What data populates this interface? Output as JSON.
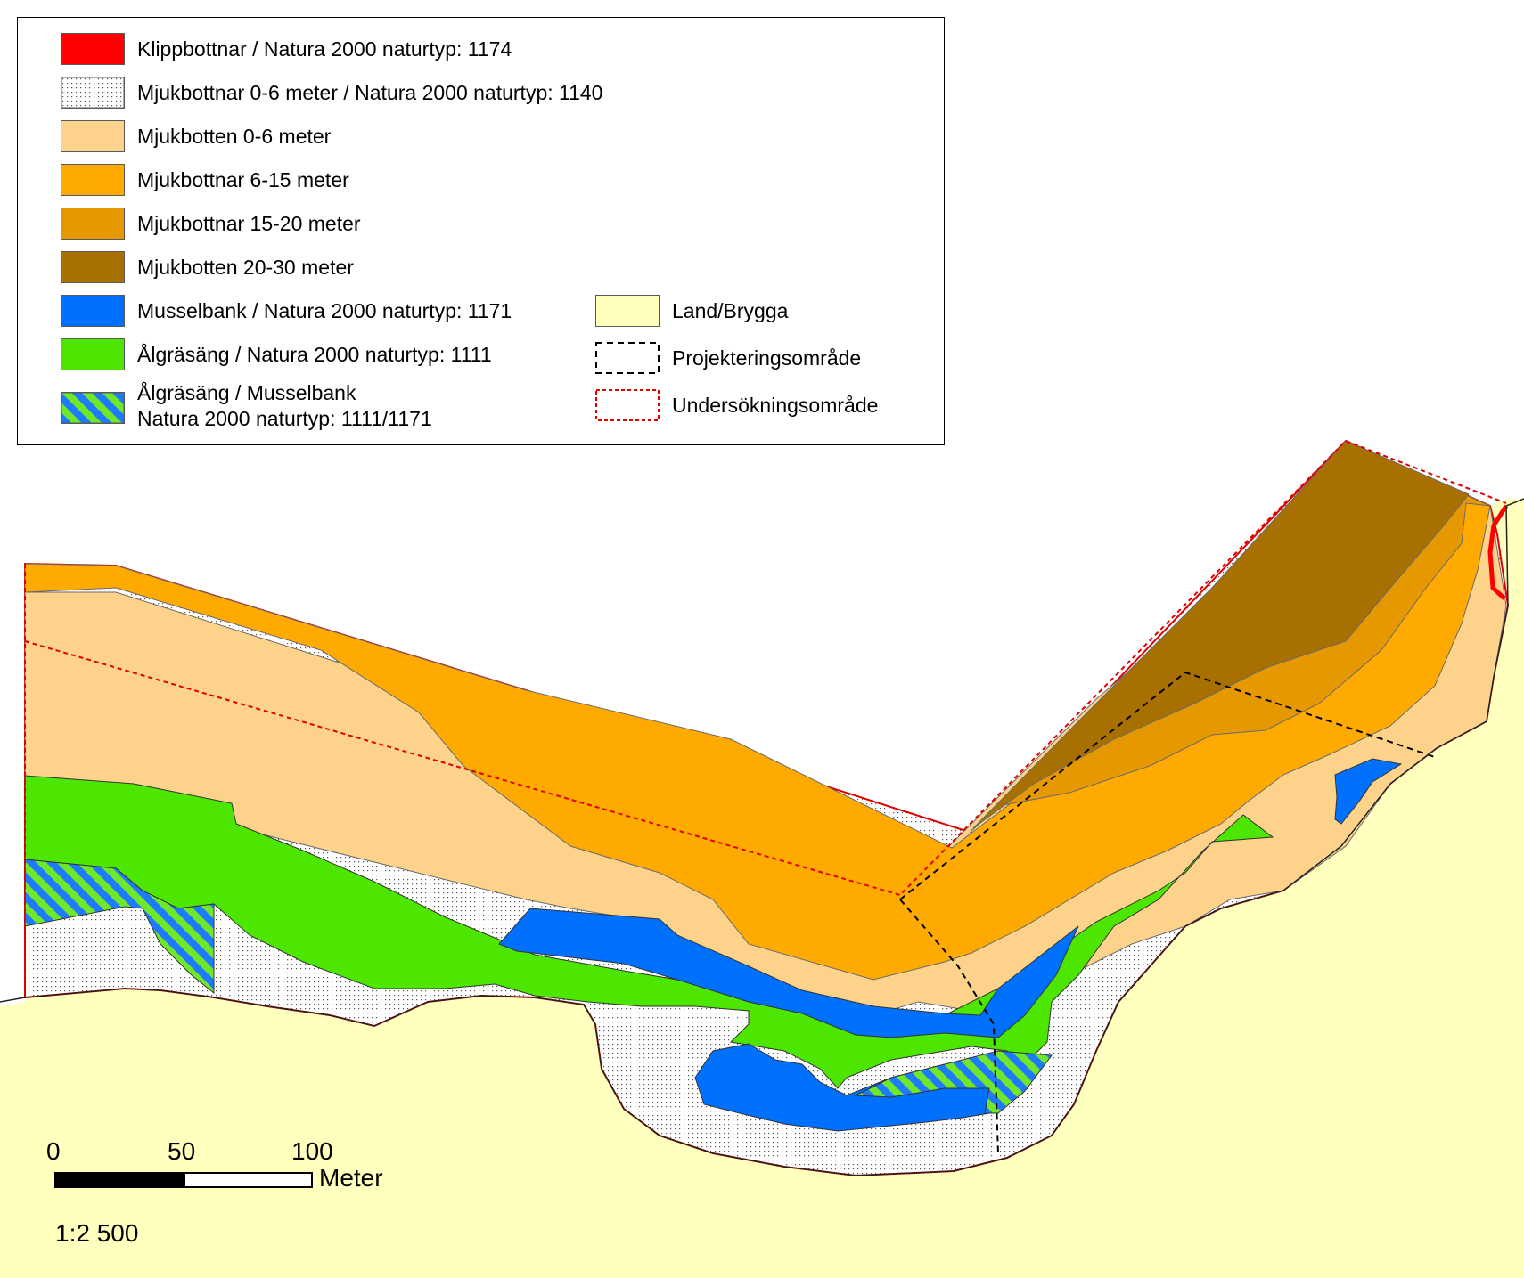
{
  "legend": {
    "items": [
      {
        "label": "Klippbottnar / Natura 2000 naturtyp: 1174",
        "color": "#ff0000"
      },
      {
        "label": "Mjukbottnar 0-6 meter / Natura 2000 naturtyp: 1140",
        "color": "#ffffff",
        "pattern": "dots"
      },
      {
        "label": "Mjukbotten 0-6 meter",
        "color": "#fdd28a"
      },
      {
        "label": "Mjukbottnar 6-15 meter",
        "color": "#ffaa00"
      },
      {
        "label": "Mjukbottnar 15-20 meter",
        "color": "#e69800"
      },
      {
        "label": "Mjukbotten 20-30 meter",
        "color": "#a87000"
      },
      {
        "label": "Musselbank / Natura 2000 naturtyp: 1171",
        "color": "#0070ff"
      },
      {
        "label": "Ålgräsäng / Natura 2000 naturtyp: 1111",
        "color": "#4ce600"
      },
      {
        "label_line1": "Ålgräsäng / Musselbank",
        "label_line2": "Natura 2000 naturtyp: 1111/1171",
        "pattern": "hatch-green-blue"
      }
    ],
    "right_items": [
      {
        "label": "Land/Brygga",
        "color": "#ffffbe"
      },
      {
        "label": "Projekteringsområde",
        "style": "black-dashed"
      },
      {
        "label": "Undersökningsområde",
        "style": "red-dotted"
      }
    ]
  },
  "scale": {
    "ticks": [
      "0",
      "50",
      "100"
    ],
    "unit": "Meter",
    "ratio": "1:2 500"
  }
}
